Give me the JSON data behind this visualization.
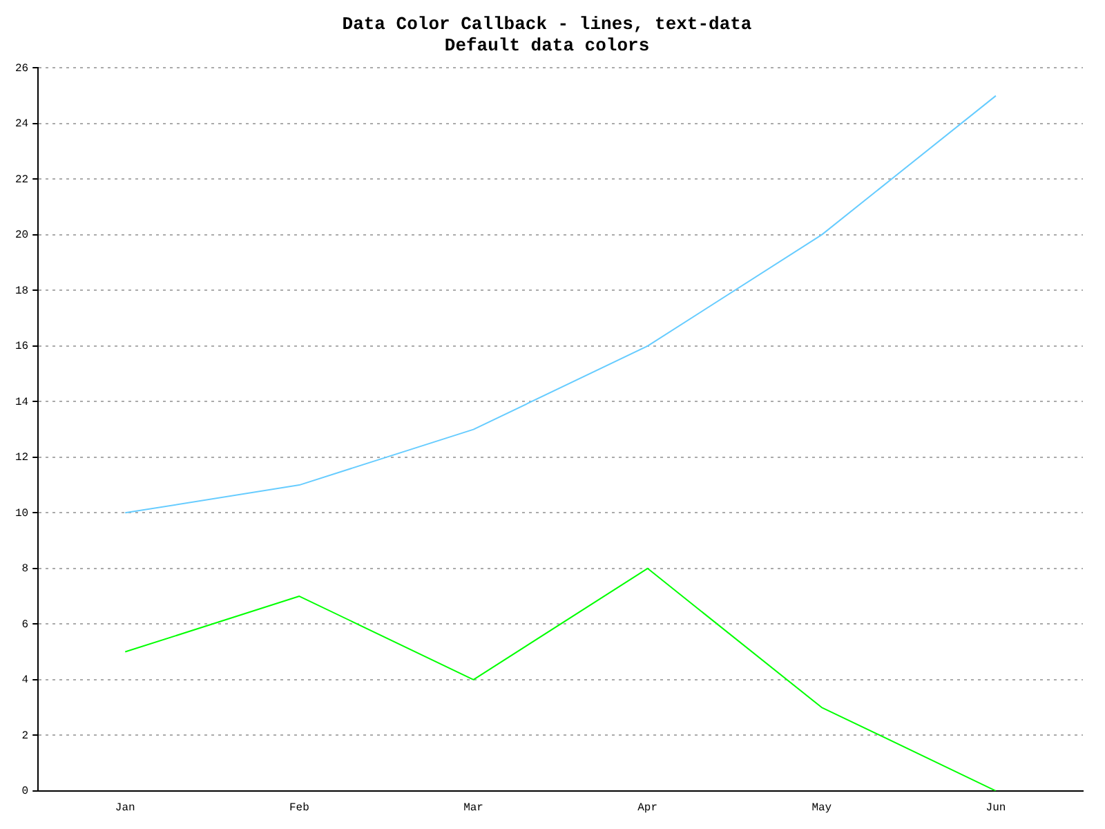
{
  "chart_data": {
    "type": "line",
    "title": "Data Color Callback - lines, text-data",
    "subtitle": "Default data colors",
    "categories": [
      "Jan",
      "Feb",
      "Mar",
      "Apr",
      "May",
      "Jun"
    ],
    "series": [
      {
        "color": "#66ccff",
        "values": [
          10,
          11,
          13,
          16,
          20,
          25
        ]
      },
      {
        "color": "#00ff00",
        "values": [
          5,
          7,
          4,
          8,
          3,
          0
        ]
      }
    ],
    "ylim": [
      0,
      26
    ],
    "yticks": [
      0,
      2,
      4,
      6,
      8,
      10,
      12,
      14,
      16,
      18,
      20,
      22,
      24,
      26
    ],
    "grid": "y",
    "legend": false,
    "marker": "none",
    "line_style": "solid"
  }
}
